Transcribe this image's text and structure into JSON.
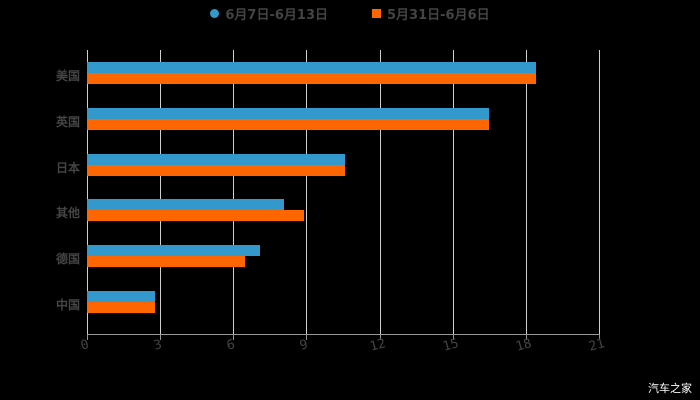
{
  "chart_data": {
    "type": "bar",
    "orientation": "horizontal",
    "categories": [
      "美国",
      "英国",
      "日本",
      "其他",
      "德国",
      "中国"
    ],
    "series": [
      {
        "name": "6月7日-6月13日",
        "color": "#3399cc",
        "values": [
          18.4,
          16.5,
          10.6,
          8.1,
          7.1,
          2.8
        ]
      },
      {
        "name": "5月31日-6月6日",
        "color": "#ff6600",
        "values": [
          18.4,
          16.5,
          10.6,
          8.9,
          6.5,
          2.8
        ]
      }
    ],
    "xlim": [
      0,
      21
    ],
    "xticks": [
      "0",
      "3",
      "6",
      "9",
      "12",
      "15",
      "18",
      "21"
    ],
    "grid": true,
    "legend_position": "top"
  },
  "watermark": "汽车之家"
}
